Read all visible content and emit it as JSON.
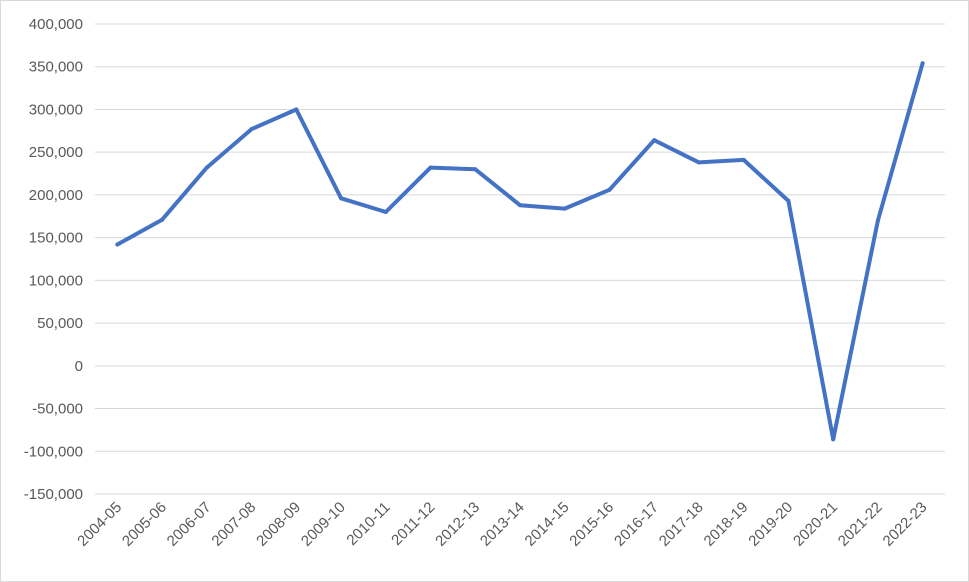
{
  "chart_data": {
    "type": "line",
    "title": "",
    "xlabel": "",
    "ylabel": "",
    "ylim": [
      -150000,
      400000
    ],
    "ytick_step": 50000,
    "grid": true,
    "legend": "none",
    "categories": [
      "2004-05",
      "2005-06",
      "2006-07",
      "2007-08",
      "2008-09",
      "2009-10",
      "2010-11",
      "2011-12",
      "2012-13",
      "2013-14",
      "2014-15",
      "2015-16",
      "2016-17",
      "2017-18",
      "2018-19",
      "2019-20",
      "2020-21",
      "2021-22",
      "2022-23"
    ],
    "series": [
      {
        "color": "#4472c4",
        "values": [
          142000,
          171000,
          232000,
          277000,
          300000,
          196000,
          180000,
          232000,
          230000,
          188000,
          184000,
          206000,
          264000,
          238000,
          241000,
          193000,
          -86000,
          170000,
          354000
        ]
      }
    ]
  }
}
